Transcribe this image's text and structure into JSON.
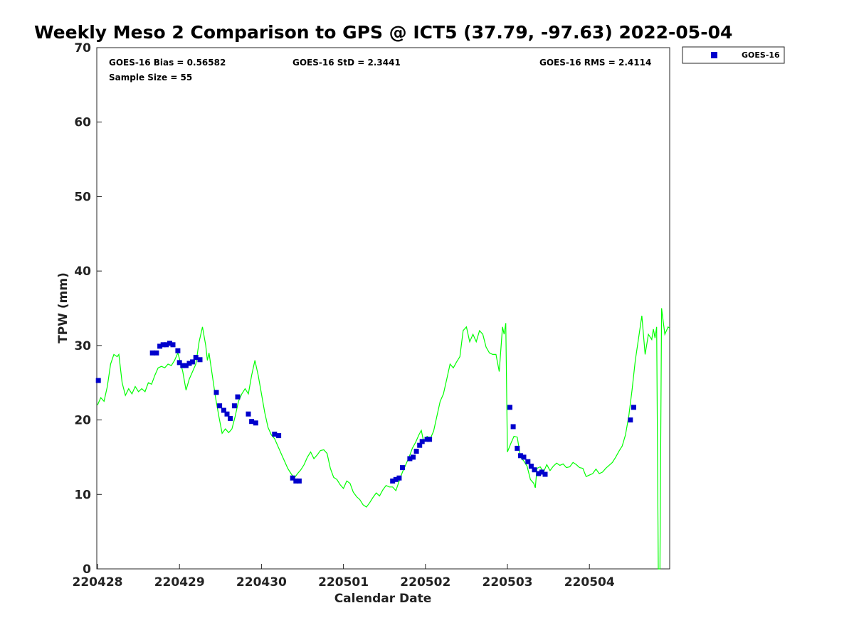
{
  "chart_data": {
    "type": "scatter",
    "title": "Weekly Meso 2 Comparison to GPS @ ICT5 (37.79, -97.63) 2022-05-04",
    "xlabel": "Calendar Date",
    "ylabel": "TPW (mm)",
    "x_tick_labels": [
      "220428",
      "220429",
      "220430",
      "220501",
      "220502",
      "220503",
      "220504"
    ],
    "xlim_days": [
      0,
      7
    ],
    "ylim": [
      0,
      70
    ],
    "y_ticks": [
      0,
      10,
      20,
      30,
      40,
      50,
      60,
      70
    ],
    "grid": false,
    "legend_position": "top-right",
    "stats": {
      "bias": "GOES-16 Bias = 0.56582",
      "std": "GOES-16 StD = 2.3441",
      "rms": "GOES-16 RMS = 2.4114",
      "sample": "Sample Size = 55"
    },
    "series": [
      {
        "name": "GOES-16",
        "kind": "marker",
        "color": "#0000cc",
        "points": [
          [
            0.01,
            25.3
          ],
          [
            0.67,
            29.0
          ],
          [
            0.72,
            29.0
          ],
          [
            0.76,
            29.9
          ],
          [
            0.8,
            30.1
          ],
          [
            0.84,
            30.1
          ],
          [
            0.88,
            30.3
          ],
          [
            0.92,
            30.1
          ],
          [
            0.98,
            29.3
          ],
          [
            1.0,
            27.7
          ],
          [
            1.04,
            27.3
          ],
          [
            1.08,
            27.3
          ],
          [
            1.12,
            27.6
          ],
          [
            1.16,
            27.8
          ],
          [
            1.2,
            28.4
          ],
          [
            1.25,
            28.1
          ],
          [
            1.45,
            23.7
          ],
          [
            1.49,
            21.9
          ],
          [
            1.54,
            21.3
          ],
          [
            1.58,
            20.8
          ],
          [
            1.62,
            20.2
          ],
          [
            1.67,
            21.9
          ],
          [
            1.71,
            23.1
          ],
          [
            1.84,
            20.8
          ],
          [
            1.88,
            19.8
          ],
          [
            1.93,
            19.6
          ],
          [
            2.16,
            18.1
          ],
          [
            2.21,
            17.9
          ],
          [
            2.38,
            12.2
          ],
          [
            2.42,
            11.8
          ],
          [
            2.46,
            11.8
          ],
          [
            3.6,
            11.8
          ],
          [
            3.64,
            12.0
          ],
          [
            3.68,
            12.2
          ],
          [
            3.72,
            13.6
          ],
          [
            3.81,
            14.8
          ],
          [
            3.85,
            15.0
          ],
          [
            3.89,
            15.8
          ],
          [
            3.93,
            16.6
          ],
          [
            3.96,
            17.1
          ],
          [
            4.02,
            17.4
          ],
          [
            4.05,
            17.4
          ],
          [
            5.03,
            21.7
          ],
          [
            5.07,
            19.1
          ],
          [
            5.12,
            16.2
          ],
          [
            5.16,
            15.2
          ],
          [
            5.2,
            15.0
          ],
          [
            5.25,
            14.4
          ],
          [
            5.29,
            13.8
          ],
          [
            5.33,
            13.3
          ],
          [
            5.38,
            12.8
          ],
          [
            5.42,
            13.0
          ],
          [
            5.46,
            12.7
          ],
          [
            6.5,
            20.0
          ],
          [
            6.54,
            21.7
          ]
        ]
      },
      {
        "name": "",
        "kind": "line",
        "color": "#00ff00",
        "points": [
          [
            0.0,
            22.0
          ],
          [
            0.04,
            23.0
          ],
          [
            0.08,
            22.5
          ],
          [
            0.12,
            24.5
          ],
          [
            0.16,
            27.5
          ],
          [
            0.2,
            28.8
          ],
          [
            0.24,
            28.5
          ],
          [
            0.26,
            28.8
          ],
          [
            0.3,
            25.0
          ],
          [
            0.34,
            23.3
          ],
          [
            0.38,
            24.2
          ],
          [
            0.42,
            23.5
          ],
          [
            0.46,
            24.5
          ],
          [
            0.5,
            23.8
          ],
          [
            0.54,
            24.2
          ],
          [
            0.58,
            23.8
          ],
          [
            0.62,
            25.0
          ],
          [
            0.66,
            24.8
          ],
          [
            0.7,
            26.0
          ],
          [
            0.74,
            27.0
          ],
          [
            0.78,
            27.2
          ],
          [
            0.82,
            27.0
          ],
          [
            0.86,
            27.5
          ],
          [
            0.9,
            27.3
          ],
          [
            0.94,
            28.0
          ],
          [
            0.98,
            29.0
          ],
          [
            1.0,
            28.2
          ],
          [
            1.04,
            26.5
          ],
          [
            1.08,
            24.0
          ],
          [
            1.12,
            25.5
          ],
          [
            1.16,
            26.5
          ],
          [
            1.2,
            27.5
          ],
          [
            1.24,
            30.5
          ],
          [
            1.28,
            32.5
          ],
          [
            1.32,
            30.0
          ],
          [
            1.34,
            28.0
          ],
          [
            1.36,
            29.0
          ],
          [
            1.4,
            26.0
          ],
          [
            1.44,
            23.0
          ],
          [
            1.48,
            20.5
          ],
          [
            1.52,
            18.2
          ],
          [
            1.56,
            18.8
          ],
          [
            1.6,
            18.3
          ],
          [
            1.64,
            18.8
          ],
          [
            1.68,
            20.5
          ],
          [
            1.72,
            22.5
          ],
          [
            1.76,
            23.5
          ],
          [
            1.8,
            24.2
          ],
          [
            1.84,
            23.5
          ],
          [
            1.88,
            26.0
          ],
          [
            1.92,
            28.0
          ],
          [
            1.96,
            26.0
          ],
          [
            2.0,
            23.5
          ],
          [
            2.04,
            21.0
          ],
          [
            2.08,
            19.0
          ],
          [
            2.12,
            18.0
          ],
          [
            2.16,
            17.5
          ],
          [
            2.2,
            16.5
          ],
          [
            2.24,
            15.5
          ],
          [
            2.28,
            14.5
          ],
          [
            2.32,
            13.5
          ],
          [
            2.36,
            12.8
          ],
          [
            2.4,
            12.2
          ],
          [
            2.44,
            12.8
          ],
          [
            2.48,
            13.3
          ],
          [
            2.52,
            14.0
          ],
          [
            2.56,
            15.0
          ],
          [
            2.6,
            15.7
          ],
          [
            2.64,
            14.8
          ],
          [
            2.68,
            15.3
          ],
          [
            2.72,
            15.9
          ],
          [
            2.76,
            16.0
          ],
          [
            2.8,
            15.5
          ],
          [
            2.84,
            13.5
          ],
          [
            2.88,
            12.3
          ],
          [
            2.92,
            12.0
          ],
          [
            2.96,
            11.3
          ],
          [
            3.0,
            10.8
          ],
          [
            3.04,
            11.8
          ],
          [
            3.08,
            11.5
          ],
          [
            3.12,
            10.3
          ],
          [
            3.16,
            9.7
          ],
          [
            3.2,
            9.3
          ],
          [
            3.24,
            8.6
          ],
          [
            3.28,
            8.3
          ],
          [
            3.32,
            8.9
          ],
          [
            3.36,
            9.6
          ],
          [
            3.4,
            10.2
          ],
          [
            3.44,
            9.8
          ],
          [
            3.48,
            10.6
          ],
          [
            3.52,
            11.2
          ],
          [
            3.56,
            11.0
          ],
          [
            3.6,
            11.0
          ],
          [
            3.64,
            10.5
          ],
          [
            3.68,
            11.8
          ],
          [
            3.72,
            13.0
          ],
          [
            3.76,
            14.0
          ],
          [
            3.8,
            15.0
          ],
          [
            3.84,
            16.2
          ],
          [
            3.88,
            17.0
          ],
          [
            3.92,
            18.0
          ],
          [
            3.95,
            18.6
          ],
          [
            3.98,
            17.0
          ],
          [
            4.02,
            17.8
          ],
          [
            4.06,
            17.5
          ],
          [
            4.1,
            18.5
          ],
          [
            4.14,
            20.5
          ],
          [
            4.18,
            22.5
          ],
          [
            4.22,
            23.5
          ],
          [
            4.26,
            25.5
          ],
          [
            4.3,
            27.5
          ],
          [
            4.34,
            27.0
          ],
          [
            4.38,
            27.8
          ],
          [
            4.42,
            28.5
          ],
          [
            4.46,
            32.0
          ],
          [
            4.5,
            32.5
          ],
          [
            4.54,
            30.5
          ],
          [
            4.58,
            31.5
          ],
          [
            4.62,
            30.5
          ],
          [
            4.66,
            32.0
          ],
          [
            4.7,
            31.5
          ],
          [
            4.74,
            29.8
          ],
          [
            4.78,
            29.0
          ],
          [
            4.82,
            28.8
          ],
          [
            4.86,
            28.8
          ],
          [
            4.9,
            26.5
          ],
          [
            4.94,
            32.5
          ],
          [
            4.96,
            31.5
          ],
          [
            4.98,
            33.0
          ],
          [
            5.0,
            15.7
          ],
          [
            5.04,
            16.8
          ],
          [
            5.08,
            17.8
          ],
          [
            5.12,
            17.7
          ],
          [
            5.16,
            15.0
          ],
          [
            5.2,
            14.5
          ],
          [
            5.24,
            13.8
          ],
          [
            5.28,
            12.0
          ],
          [
            5.32,
            11.5
          ],
          [
            5.34,
            10.9
          ],
          [
            5.36,
            13.5
          ],
          [
            5.4,
            13.7
          ],
          [
            5.44,
            13.0
          ],
          [
            5.48,
            14.0
          ],
          [
            5.52,
            13.2
          ],
          [
            5.56,
            13.8
          ],
          [
            5.6,
            14.2
          ],
          [
            5.64,
            13.9
          ],
          [
            5.68,
            14.1
          ],
          [
            5.72,
            13.6
          ],
          [
            5.76,
            13.7
          ],
          [
            5.8,
            14.3
          ],
          [
            5.84,
            14.0
          ],
          [
            5.88,
            13.6
          ],
          [
            5.92,
            13.5
          ],
          [
            5.96,
            12.4
          ],
          [
            6.0,
            12.6
          ],
          [
            6.04,
            12.8
          ],
          [
            6.08,
            13.4
          ],
          [
            6.12,
            12.8
          ],
          [
            6.16,
            13.0
          ],
          [
            6.2,
            13.5
          ],
          [
            6.24,
            13.9
          ],
          [
            6.28,
            14.3
          ],
          [
            6.32,
            15.0
          ],
          [
            6.36,
            15.8
          ],
          [
            6.4,
            16.5
          ],
          [
            6.44,
            18.0
          ],
          [
            6.48,
            20.5
          ],
          [
            6.52,
            24.0
          ],
          [
            6.56,
            28.0
          ],
          [
            6.6,
            31.0
          ],
          [
            6.64,
            34.0
          ],
          [
            6.68,
            28.8
          ],
          [
            6.72,
            31.5
          ],
          [
            6.76,
            30.8
          ],
          [
            6.78,
            32.2
          ],
          [
            6.8,
            31.0
          ],
          [
            6.82,
            32.5
          ],
          [
            6.84,
            0.0
          ],
          [
            6.86,
            0.0
          ],
          [
            6.88,
            35.0
          ],
          [
            6.92,
            31.5
          ],
          [
            6.96,
            32.5
          ],
          [
            6.98,
            32.3
          ]
        ]
      }
    ]
  }
}
